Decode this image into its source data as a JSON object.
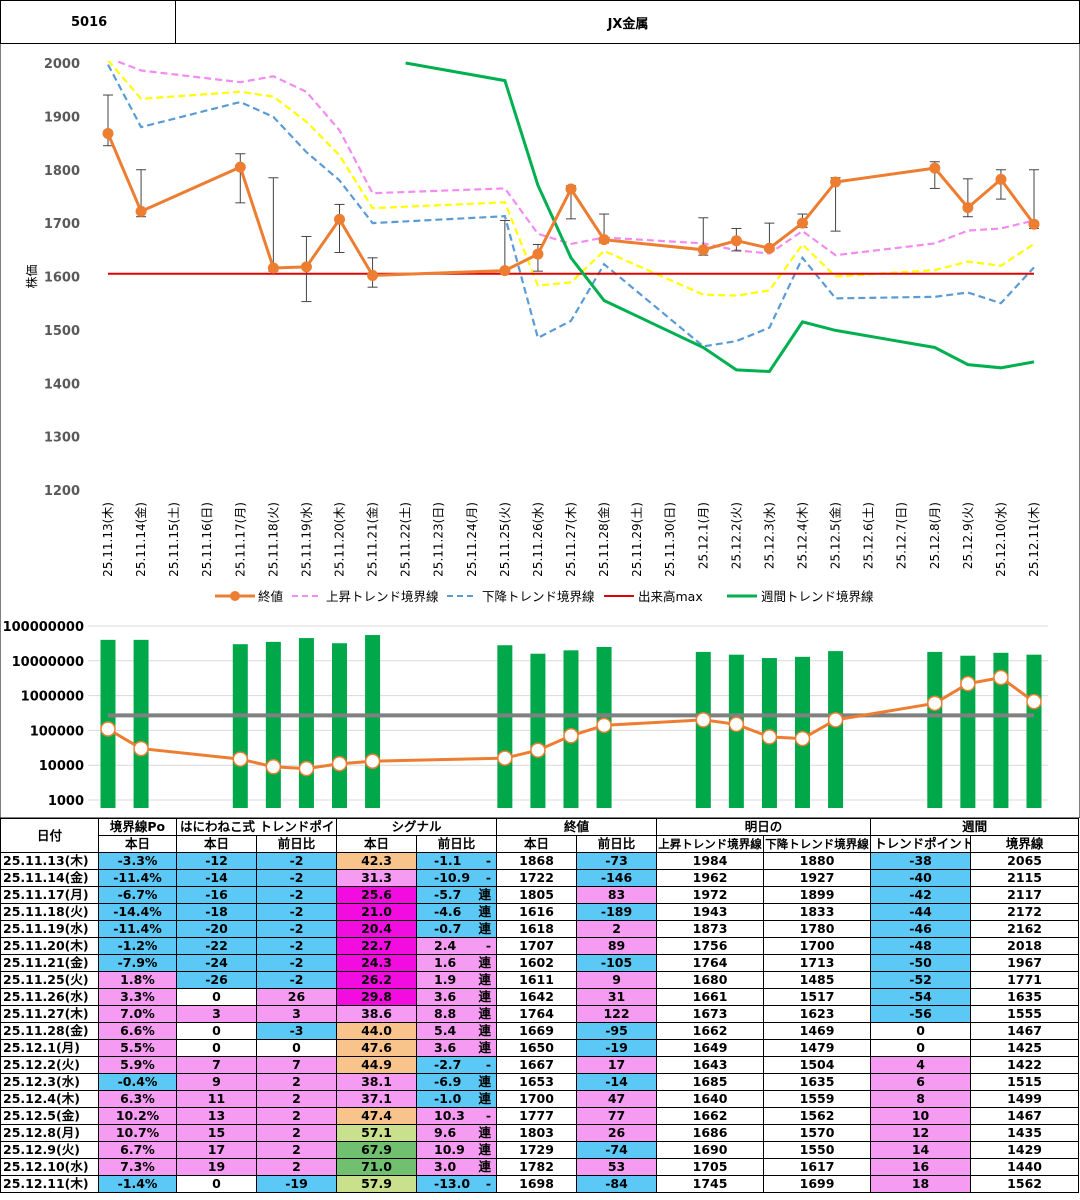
{
  "header": {
    "code": "5016",
    "name": "JX金属"
  },
  "colors": {
    "close": "#ED7D31",
    "up": "#F38BF0",
    "down": "#5B9BD5",
    "volmax": "#E00000",
    "weekly": "#00B050",
    "yellow": "#FFFF00",
    "volbar": "#00A84A",
    "volline": "#808080",
    "pos": "#F59CF2",
    "neg": "#5BC8F5",
    "magenta": "#F20CE0",
    "orange": "#F8C48C",
    "lightgreen": "#C9E08C",
    "green": "#70C070",
    "pink": "#FFB0D8"
  },
  "chart_data": [
    {
      "type": "line",
      "ylabel": "株価",
      "ylim": [
        1200,
        2000
      ],
      "yticks": [
        "2000",
        "1900",
        "1800",
        "1700",
        "1600",
        "1500",
        "1400",
        "1300",
        "1200"
      ],
      "categories": [
        "25.11.13(木)",
        "25.11.14(金)",
        "25.11.15(土)",
        "25.11.16(日)",
        "25.11.17(月)",
        "25.11.18(火)",
        "25.11.19(水)",
        "25.11.20(木)",
        "25.11.21(金)",
        "25.11.22(土)",
        "25.11.23(日)",
        "25.11.24(月)",
        "25.11.25(火)",
        "25.11.26(水)",
        "25.11.27(木)",
        "25.11.28(金)",
        "25.11.29(土)",
        "25.11.30(日)",
        "25.12.1(月)",
        "25.12.2(火)",
        "25.12.3(水)",
        "25.12.4(木)",
        "25.12.5(金)",
        "25.12.6(土)",
        "25.12.7(日)",
        "25.12.8(月)",
        "25.12.9(火)",
        "25.12.10(水)",
        "25.12.11(木)"
      ],
      "series": [
        {
          "name": "終値",
          "values": [
            1868,
            1722,
            null,
            null,
            1805,
            1616,
            1618,
            1707,
            1602,
            null,
            null,
            null,
            1611,
            1642,
            1764,
            1669,
            null,
            null,
            1650,
            1667,
            1653,
            1700,
            1777,
            null,
            null,
            1803,
            1729,
            1782,
            1698
          ],
          "high": [
            1940,
            1800,
            null,
            null,
            1830,
            1785,
            1675,
            1735,
            1635,
            null,
            null,
            null,
            1705,
            1660,
            1770,
            1717,
            null,
            null,
            1710,
            1690,
            1700,
            1717,
            1785,
            null,
            null,
            1815,
            1783,
            1800,
            1800
          ],
          "low": [
            1845,
            1712,
            null,
            null,
            1738,
            1610,
            1553,
            1645,
            1580,
            null,
            null,
            null,
            1608,
            1610,
            1708,
            1663,
            null,
            null,
            1640,
            1648,
            1648,
            1692,
            1685,
            null,
            null,
            1765,
            1712,
            1745,
            1690
          ]
        },
        {
          "name": "上昇トレンド境界線",
          "values": [
            2010,
            1986,
            null,
            null,
            1964,
            1975,
            1946,
            1874,
            1756,
            null,
            null,
            null,
            1765,
            1680,
            1661,
            1673,
            null,
            null,
            1662,
            1649,
            1643,
            1685,
            1640,
            null,
            null,
            1662,
            1686,
            1690,
            1705
          ]
        },
        {
          "name": "下降トレンド境界線",
          "values": [
            1997,
            1880,
            null,
            null,
            1927,
            1899,
            1833,
            1780,
            1700,
            null,
            null,
            null,
            1713,
            1485,
            1517,
            1623,
            null,
            null,
            1469,
            1479,
            1504,
            1635,
            1559,
            null,
            null,
            1562,
            1570,
            1550,
            1617
          ]
        },
        {
          "name": "黄線",
          "values": [
            2005,
            1933,
            null,
            null,
            1946,
            1937,
            1890,
            1827,
            1728,
            null,
            null,
            null,
            1739,
            1583,
            1589,
            1648,
            null,
            null,
            1566,
            1564,
            1574,
            1660,
            1600,
            null,
            null,
            1612,
            1628,
            1620,
            1661
          ]
        },
        {
          "name": "出来高max",
          "values": [
            1605,
            1605,
            1605,
            1605,
            1605,
            1605,
            1605,
            1605,
            1605,
            1605,
            1605,
            1605,
            1605,
            1605,
            1605,
            1605,
            1605,
            1605,
            1605,
            1605,
            1605,
            1605,
            1605,
            1605,
            1605,
            1605,
            1605,
            1605,
            1605
          ]
        },
        {
          "name": "週間トレンド境界線",
          "values": [
            null,
            null,
            null,
            null,
            null,
            null,
            null,
            null,
            null,
            2000,
            null,
            null,
            1967,
            1771,
            1635,
            1555,
            null,
            null,
            1467,
            1425,
            1422,
            1515,
            1499,
            null,
            null,
            1467,
            1435,
            1429,
            1440
          ]
        }
      ],
      "legend": [
        "終値",
        "上昇トレンド境界線",
        "下降トレンド境界線",
        "出来高max",
        "週間トレンド境界線"
      ]
    },
    {
      "type": "bar",
      "yscale": "log",
      "ylim": [
        1000,
        100000000
      ],
      "yticks": [
        "100000000",
        "10000000",
        "1000000",
        "100000",
        "10000",
        "1000"
      ],
      "series": [
        {
          "name": "出来高",
          "values": [
            40000000,
            40000000,
            null,
            null,
            30000000,
            35000000,
            45000000,
            32000000,
            55000000,
            null,
            null,
            null,
            28000000,
            16000000,
            20000000,
            25000000,
            null,
            null,
            18000000,
            15000000,
            12000000,
            13000000,
            19000000,
            null,
            null,
            18000000,
            14000000,
            17000000,
            15000000
          ]
        },
        {
          "name": "売買代金",
          "values": [
            110000,
            30000,
            null,
            null,
            15000,
            9000,
            8000,
            11000,
            13000,
            null,
            null,
            null,
            16000,
            27000,
            70000,
            140000,
            null,
            null,
            200000,
            150000,
            65000,
            58000,
            200000,
            null,
            null,
            600000,
            2200000,
            3300000,
            670000
          ]
        },
        {
          "name": "基準線",
          "values": [
            270000
          ]
        }
      ]
    }
  ],
  "table": {
    "headers1": [
      "日付",
      "境界線Po",
      "はにわねこ式 トレンドポイント",
      "シグナル",
      "終値",
      "明日の",
      "週間"
    ],
    "headers2": [
      "本日",
      "本日",
      "前日比",
      "本日",
      "前日比",
      "本日",
      "前日比",
      "上昇トレンド境界線",
      "下降トレンド境界線",
      "トレンドポイント",
      "境界線"
    ],
    "rows": [
      {
        "date": "25.11.13(木)",
        "po": "-3.3%",
        "tp": "-12",
        "tpd": "-2",
        "sig": "42.3",
        "sigd": "-1.1",
        "mark": "-",
        "close": "1868",
        "cd": "-73",
        "up": "1984",
        "down": "1880",
        "wtp": "-38",
        "wline": "2065"
      },
      {
        "date": "25.11.14(金)",
        "po": "-11.4%",
        "tp": "-14",
        "tpd": "-2",
        "sig": "31.3",
        "sigd": "-10.9",
        "mark": "-",
        "close": "1722",
        "cd": "-146",
        "up": "1962",
        "down": "1927",
        "wtp": "-40",
        "wline": "2115"
      },
      {
        "date": "25.11.17(月)",
        "po": "-6.7%",
        "tp": "-16",
        "tpd": "-2",
        "sig": "25.6",
        "sigd": "-5.7",
        "mark": "連",
        "close": "1805",
        "cd": "83",
        "up": "1972",
        "down": "1899",
        "wtp": "-42",
        "wline": "2117"
      },
      {
        "date": "25.11.18(火)",
        "po": "-14.4%",
        "tp": "-18",
        "tpd": "-2",
        "sig": "21.0",
        "sigd": "-4.6",
        "mark": "連",
        "close": "1616",
        "cd": "-189",
        "up": "1943",
        "down": "1833",
        "wtp": "-44",
        "wline": "2172"
      },
      {
        "date": "25.11.19(水)",
        "po": "-11.4%",
        "tp": "-20",
        "tpd": "-2",
        "sig": "20.4",
        "sigd": "-0.7",
        "mark": "連",
        "close": "1618",
        "cd": "2",
        "up": "1873",
        "down": "1780",
        "wtp": "-46",
        "wline": "2162"
      },
      {
        "date": "25.11.20(木)",
        "po": "-1.2%",
        "tp": "-22",
        "tpd": "-2",
        "sig": "22.7",
        "sigd": "2.4",
        "mark": "-",
        "close": "1707",
        "cd": "89",
        "up": "1756",
        "down": "1700",
        "wtp": "-48",
        "wline": "2018"
      },
      {
        "date": "25.11.21(金)",
        "po": "-7.9%",
        "tp": "-24",
        "tpd": "-2",
        "sig": "24.3",
        "sigd": "1.6",
        "mark": "連",
        "close": "1602",
        "cd": "-105",
        "up": "1764",
        "down": "1713",
        "wtp": "-50",
        "wline": "1967"
      },
      {
        "date": "25.11.25(火)",
        "po": "1.8%",
        "tp": "-26",
        "tpd": "-2",
        "sig": "26.2",
        "sigd": "1.9",
        "mark": "連",
        "close": "1611",
        "cd": "9",
        "up": "1680",
        "down": "1485",
        "wtp": "-52",
        "wline": "1771"
      },
      {
        "date": "25.11.26(水)",
        "po": "3.3%",
        "tp": "0",
        "tpd": "26",
        "sig": "29.8",
        "sigd": "3.6",
        "mark": "連",
        "close": "1642",
        "cd": "31",
        "up": "1661",
        "down": "1517",
        "wtp": "-54",
        "wline": "1635"
      },
      {
        "date": "25.11.27(木)",
        "po": "7.0%",
        "tp": "3",
        "tpd": "3",
        "sig": "38.6",
        "sigd": "8.8",
        "mark": "連",
        "close": "1764",
        "cd": "122",
        "up": "1673",
        "down": "1623",
        "wtp": "-56",
        "wline": "1555"
      },
      {
        "date": "25.11.28(金)",
        "po": "6.6%",
        "tp": "0",
        "tpd": "-3",
        "sig": "44.0",
        "sigd": "5.4",
        "mark": "連",
        "close": "1669",
        "cd": "-95",
        "up": "1662",
        "down": "1469",
        "wtp": "0",
        "wline": "1467"
      },
      {
        "date": "25.12.1(月)",
        "po": "5.5%",
        "tp": "0",
        "tpd": "0",
        "sig": "47.6",
        "sigd": "3.6",
        "mark": "連",
        "close": "1650",
        "cd": "-19",
        "up": "1649",
        "down": "1479",
        "wtp": "0",
        "wline": "1425"
      },
      {
        "date": "25.12.2(火)",
        "po": "5.9%",
        "tp": "7",
        "tpd": "7",
        "sig": "44.9",
        "sigd": "-2.7",
        "mark": "-",
        "close": "1667",
        "cd": "17",
        "up": "1643",
        "down": "1504",
        "wtp": "4",
        "wline": "1422"
      },
      {
        "date": "25.12.3(水)",
        "po": "-0.4%",
        "tp": "9",
        "tpd": "2",
        "sig": "38.1",
        "sigd": "-6.9",
        "mark": "連",
        "close": "1653",
        "cd": "-14",
        "up": "1685",
        "down": "1635",
        "wtp": "6",
        "wline": "1515"
      },
      {
        "date": "25.12.4(木)",
        "po": "6.3%",
        "tp": "11",
        "tpd": "2",
        "sig": "37.1",
        "sigd": "-1.0",
        "mark": "連",
        "close": "1700",
        "cd": "47",
        "up": "1640",
        "down": "1559",
        "wtp": "8",
        "wline": "1499"
      },
      {
        "date": "25.12.5(金)",
        "po": "10.2%",
        "tp": "13",
        "tpd": "2",
        "sig": "47.4",
        "sigd": "10.3",
        "mark": "-",
        "close": "1777",
        "cd": "77",
        "up": "1662",
        "down": "1562",
        "wtp": "10",
        "wline": "1467"
      },
      {
        "date": "25.12.8(月)",
        "po": "10.7%",
        "tp": "15",
        "tpd": "2",
        "sig": "57.1",
        "sigd": "9.6",
        "mark": "連",
        "close": "1803",
        "cd": "26",
        "up": "1686",
        "down": "1570",
        "wtp": "12",
        "wline": "1435"
      },
      {
        "date": "25.12.9(火)",
        "po": "6.7%",
        "tp": "17",
        "tpd": "2",
        "sig": "67.9",
        "sigd": "10.9",
        "mark": "連",
        "close": "1729",
        "cd": "-74",
        "up": "1690",
        "down": "1550",
        "wtp": "14",
        "wline": "1429"
      },
      {
        "date": "25.12.10(水)",
        "po": "7.3%",
        "tp": "19",
        "tpd": "2",
        "sig": "71.0",
        "sigd": "3.0",
        "mark": "連",
        "close": "1782",
        "cd": "53",
        "up": "1705",
        "down": "1617",
        "wtp": "16",
        "wline": "1440"
      },
      {
        "date": "25.12.11(木)",
        "po": "-1.4%",
        "tp": "0",
        "tpd": "-19",
        "sig": "57.9",
        "sigd": "-13.0",
        "mark": "-",
        "close": "1698",
        "cd": "-84",
        "up": "1745",
        "down": "1699",
        "wtp": "18",
        "wline": "1562"
      }
    ]
  }
}
